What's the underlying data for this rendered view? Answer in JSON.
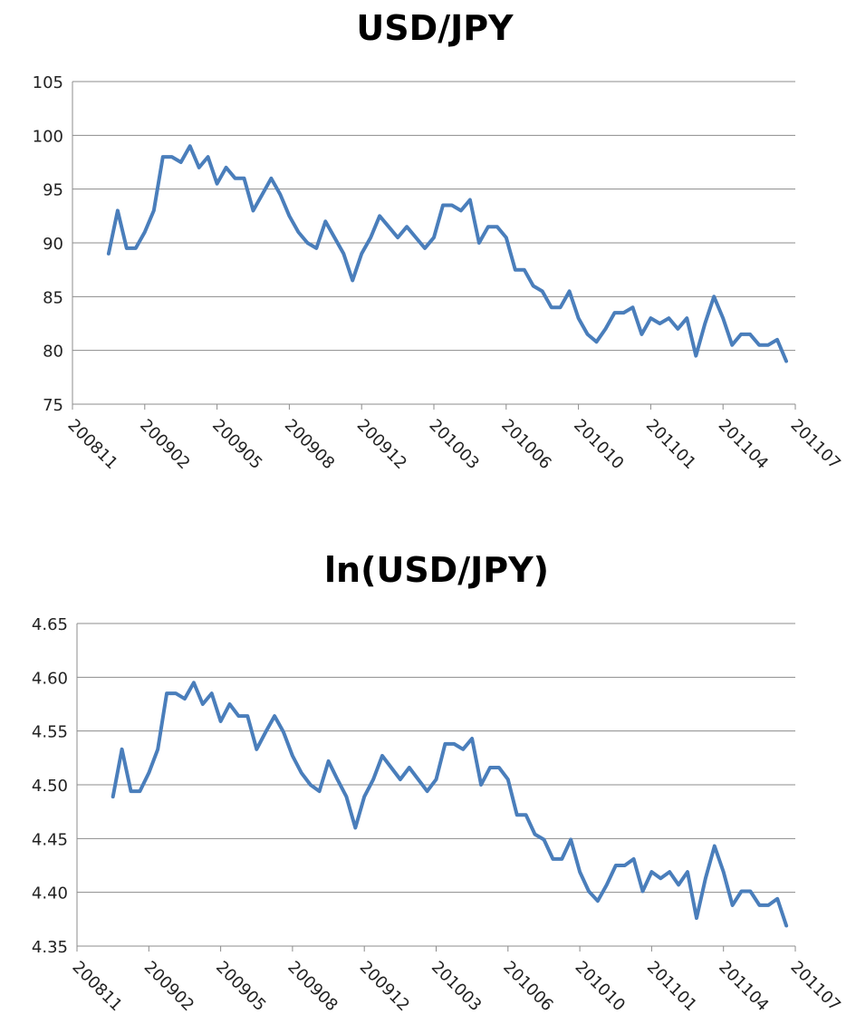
{
  "chart_data": [
    {
      "type": "line",
      "title": "USD/JPY",
      "categories": [
        "200811",
        null,
        null,
        null,
        null,
        null,
        null,
        null,
        "200902",
        null,
        null,
        null,
        null,
        null,
        null,
        null,
        "200905",
        null,
        null,
        null,
        null,
        null,
        null,
        null,
        "200908",
        null,
        null,
        null,
        null,
        null,
        null,
        null,
        "200912",
        null,
        null,
        null,
        null,
        null,
        null,
        null,
        "201003",
        null,
        null,
        null,
        null,
        null,
        null,
        null,
        "201006",
        null,
        null,
        null,
        null,
        null,
        null,
        null,
        "201010",
        null,
        null,
        null,
        null,
        null,
        null,
        null,
        "201101",
        null,
        null,
        null,
        null,
        null,
        null,
        null,
        "201104",
        null,
        null,
        null,
        null,
        null,
        null,
        null,
        "201107"
      ],
      "values": [
        null,
        null,
        null,
        null,
        89,
        93,
        89.5,
        89.5,
        91,
        93,
        98,
        98,
        97.5,
        99,
        97,
        98,
        95.5,
        97,
        96,
        96,
        93,
        94.5,
        96,
        94.5,
        92.5,
        91,
        90,
        89.5,
        92,
        90.5,
        89,
        86.5,
        89,
        90.5,
        92.5,
        91.5,
        90.5,
        91.5,
        90.5,
        89.5,
        90.5,
        93.5,
        93.5,
        93,
        94,
        90,
        91.5,
        91.5,
        90.5,
        87.5,
        87.5,
        86,
        85.5,
        84,
        84,
        85.5,
        83,
        81.5,
        80.8,
        82,
        83.5,
        83.5,
        84,
        81.5,
        83,
        82.5,
        83,
        82,
        83,
        79.5,
        82.5,
        85,
        83,
        80.5,
        81.5,
        81.5,
        80.5,
        80.5,
        81,
        79,
        null
      ],
      "color": "#4a7ebb",
      "ylim": [
        75,
        105
      ],
      "yticks": [
        75,
        80,
        85,
        90,
        95,
        100,
        105
      ],
      "grid": true
    },
    {
      "type": "line",
      "title": "ln(USD/JPY)",
      "categories": [
        "200811",
        null,
        null,
        null,
        null,
        null,
        null,
        null,
        "200902",
        null,
        null,
        null,
        null,
        null,
        null,
        null,
        "200905",
        null,
        null,
        null,
        null,
        null,
        null,
        null,
        "200908",
        null,
        null,
        null,
        null,
        null,
        null,
        null,
        "200912",
        null,
        null,
        null,
        null,
        null,
        null,
        null,
        "201003",
        null,
        null,
        null,
        null,
        null,
        null,
        null,
        "201006",
        null,
        null,
        null,
        null,
        null,
        null,
        null,
        "201010",
        null,
        null,
        null,
        null,
        null,
        null,
        null,
        "201101",
        null,
        null,
        null,
        null,
        null,
        null,
        null,
        "201104",
        null,
        null,
        null,
        null,
        null,
        null,
        null,
        "201107"
      ],
      "values": [
        null,
        null,
        null,
        null,
        4.489,
        4.533,
        4.494,
        4.494,
        4.511,
        4.533,
        4.585,
        4.585,
        4.58,
        4.595,
        4.575,
        4.585,
        4.559,
        4.575,
        4.564,
        4.564,
        4.533,
        4.549,
        4.564,
        4.549,
        4.527,
        4.511,
        4.5,
        4.494,
        4.522,
        4.505,
        4.489,
        4.46,
        4.489,
        4.505,
        4.527,
        4.516,
        4.505,
        4.516,
        4.505,
        4.494,
        4.505,
        4.538,
        4.538,
        4.533,
        4.543,
        4.5,
        4.516,
        4.516,
        4.505,
        4.472,
        4.472,
        4.454,
        4.449,
        4.431,
        4.431,
        4.449,
        4.419,
        4.401,
        4.392,
        4.407,
        4.425,
        4.425,
        4.431,
        4.401,
        4.419,
        4.413,
        4.419,
        4.407,
        4.419,
        4.376,
        4.413,
        4.443,
        4.419,
        4.388,
        4.401,
        4.401,
        4.388,
        4.388,
        4.394,
        4.369,
        null
      ],
      "color": "#4a7ebb",
      "ylim": [
        4.35,
        4.65
      ],
      "yticks": [
        4.35,
        {
          "value": 4.4,
          "label": "4.40"
        },
        4.45,
        {
          "value": 4.5,
          "label": "4.50"
        },
        4.55,
        {
          "value": 4.6,
          "label": "4.60"
        },
        4.65
      ],
      "grid": true
    }
  ]
}
